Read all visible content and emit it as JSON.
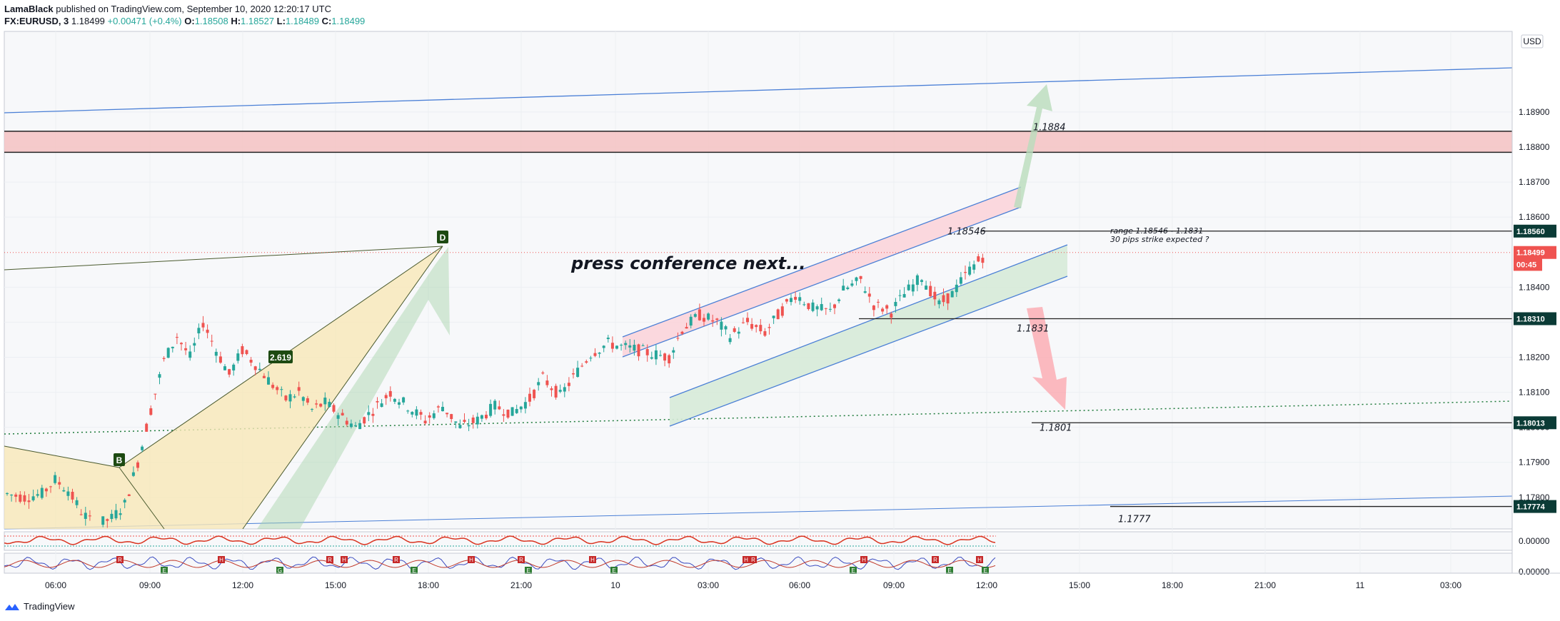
{
  "header": {
    "author": "LamaBlack",
    "published": "published on TradingView.com, September 10, 2020 12:20:17 UTC",
    "symbol": "FX:EURUSD, 3",
    "last": "1.18499",
    "change": "+0.00471 (+0.4%)",
    "o_label": "O:",
    "o_value": "1.18508",
    "h_label": "H:",
    "h_value": "1.18527",
    "l_label": "L:",
    "l_value": "1.18489",
    "c_label": "C:",
    "c_value": "1.18499"
  },
  "footer": {
    "brand": "TradingView"
  },
  "colors": {
    "up": "#26a69a",
    "down": "#ef5350",
    "dark_label": "#0b3b36",
    "blue_line": "#4a7fd6",
    "red_zone": "#f4c2c2",
    "green_zone": "#d6ead8",
    "harmonic_fill": "#f8e7b8",
    "harmonic_label": "#1d4a12"
  },
  "chart_data": {
    "type": "candlestick",
    "symbol": "FX:EURUSD",
    "interval": "3",
    "currency_label": "USD",
    "price_ticks": [
      "1.18900",
      "1.18800",
      "1.18700",
      "1.18600",
      "1.18400",
      "1.18300",
      "1.18200",
      "1.18100",
      "1.18000",
      "1.17900",
      "1.17800"
    ],
    "time_ticks": [
      "06:00",
      "09:00",
      "12:00",
      "15:00",
      "18:00",
      "21:00",
      "10",
      "03:00",
      "06:00",
      "09:00",
      "12:00",
      "15:00",
      "18:00",
      "21:00",
      "11",
      "03:00"
    ],
    "price_range": [
      1.1771,
      1.1913
    ],
    "price_tags": [
      {
        "label": "1.18560",
        "price": 1.1856,
        "style": "dark"
      },
      {
        "label": "1.18499",
        "price": 1.18499,
        "style": "red"
      },
      {
        "label": "00:45",
        "price": 1.18465,
        "style": "red"
      },
      {
        "label": "1.18310",
        "price": 1.1831,
        "style": "dark"
      },
      {
        "label": "1.18013",
        "price": 1.18013,
        "style": "dark"
      },
      {
        "label": "1.17774",
        "price": 1.17774,
        "style": "dark"
      }
    ],
    "annotations": [
      {
        "text": "1.1884",
        "price": 1.1884
      },
      {
        "text": "1.18546",
        "price": 1.18546
      },
      {
        "text": "1.1831",
        "price": 1.1831
      },
      {
        "text": "1.1801",
        "price": 1.1801
      },
      {
        "text": "1.1777",
        "price": 1.1777
      },
      {
        "text": "press conference next...",
        "price": 1.18385
      },
      {
        "text": "range 1.18546 - 1.1831",
        "price": 1.1847
      },
      {
        "text": "30 pips strike expected ?",
        "price": 1.1846
      }
    ],
    "resistance_zone": [
      1.18785,
      1.18845
    ],
    "harmonic_labels": [
      "B",
      "D",
      "2.619"
    ],
    "oscillator_ticks": [
      "0.00000",
      "0.00000"
    ],
    "oscillator_badges": [
      "R",
      "E",
      "H",
      "G",
      "R",
      "H",
      "R",
      "E",
      "H",
      "R",
      "E",
      "H",
      "E",
      "H",
      "R",
      "E",
      "H",
      "R",
      "E",
      "H",
      "E"
    ],
    "price_path": [
      [
        0,
        1.1781
      ],
      [
        4,
        1.178
      ],
      [
        8,
        1.1781
      ],
      [
        11,
        1.1785
      ],
      [
        14,
        1.1782
      ],
      [
        17,
        1.1776
      ],
      [
        20,
        1.1772
      ],
      [
        24,
        1.1774
      ],
      [
        27,
        1.1778
      ],
      [
        30,
        1.179
      ],
      [
        33,
        1.1805
      ],
      [
        36,
        1.1819
      ],
      [
        39,
        1.1826
      ],
      [
        42,
        1.182
      ],
      [
        45,
        1.183
      ],
      [
        48,
        1.1822
      ],
      [
        51,
        1.1815
      ],
      [
        54,
        1.1822
      ],
      [
        57,
        1.1818
      ],
      [
        61,
        1.1812
      ],
      [
        64,
        1.1808
      ],
      [
        67,
        1.181
      ],
      [
        70,
        1.1805
      ],
      [
        73,
        1.1807
      ],
      [
        76,
        1.1804
      ],
      [
        80,
        1.18
      ],
      [
        84,
        1.1805
      ],
      [
        88,
        1.181
      ],
      [
        92,
        1.1806
      ],
      [
        96,
        1.1802
      ],
      [
        100,
        1.1806
      ],
      [
        104,
        1.18
      ],
      [
        108,
        1.1802
      ],
      [
        112,
        1.1806
      ],
      [
        116,
        1.1804
      ],
      [
        120,
        1.1808
      ],
      [
        123,
        1.1814
      ],
      [
        127,
        1.1809
      ],
      [
        131,
        1.1816
      ],
      [
        134,
        1.1821
      ],
      [
        138,
        1.1824
      ],
      [
        141,
        1.1823
      ],
      [
        145,
        1.1822
      ],
      [
        148,
        1.1821
      ],
      [
        152,
        1.182
      ],
      [
        155,
        1.1828
      ],
      [
        159,
        1.1832
      ],
      [
        163,
        1.183
      ],
      [
        166,
        1.1826
      ],
      [
        170,
        1.183
      ],
      [
        174,
        1.1827
      ],
      [
        177,
        1.1832
      ],
      [
        181,
        1.1838
      ],
      [
        185,
        1.1834
      ],
      [
        189,
        1.1833
      ],
      [
        192,
        1.1839
      ],
      [
        196,
        1.1842
      ],
      [
        199,
        1.1835
      ],
      [
        203,
        1.1833
      ],
      [
        206,
        1.1838
      ],
      [
        210,
        1.1843
      ],
      [
        214,
        1.1835
      ],
      [
        217,
        1.1838
      ],
      [
        221,
        1.1845
      ],
      [
        225,
        1.18499
      ]
    ]
  }
}
